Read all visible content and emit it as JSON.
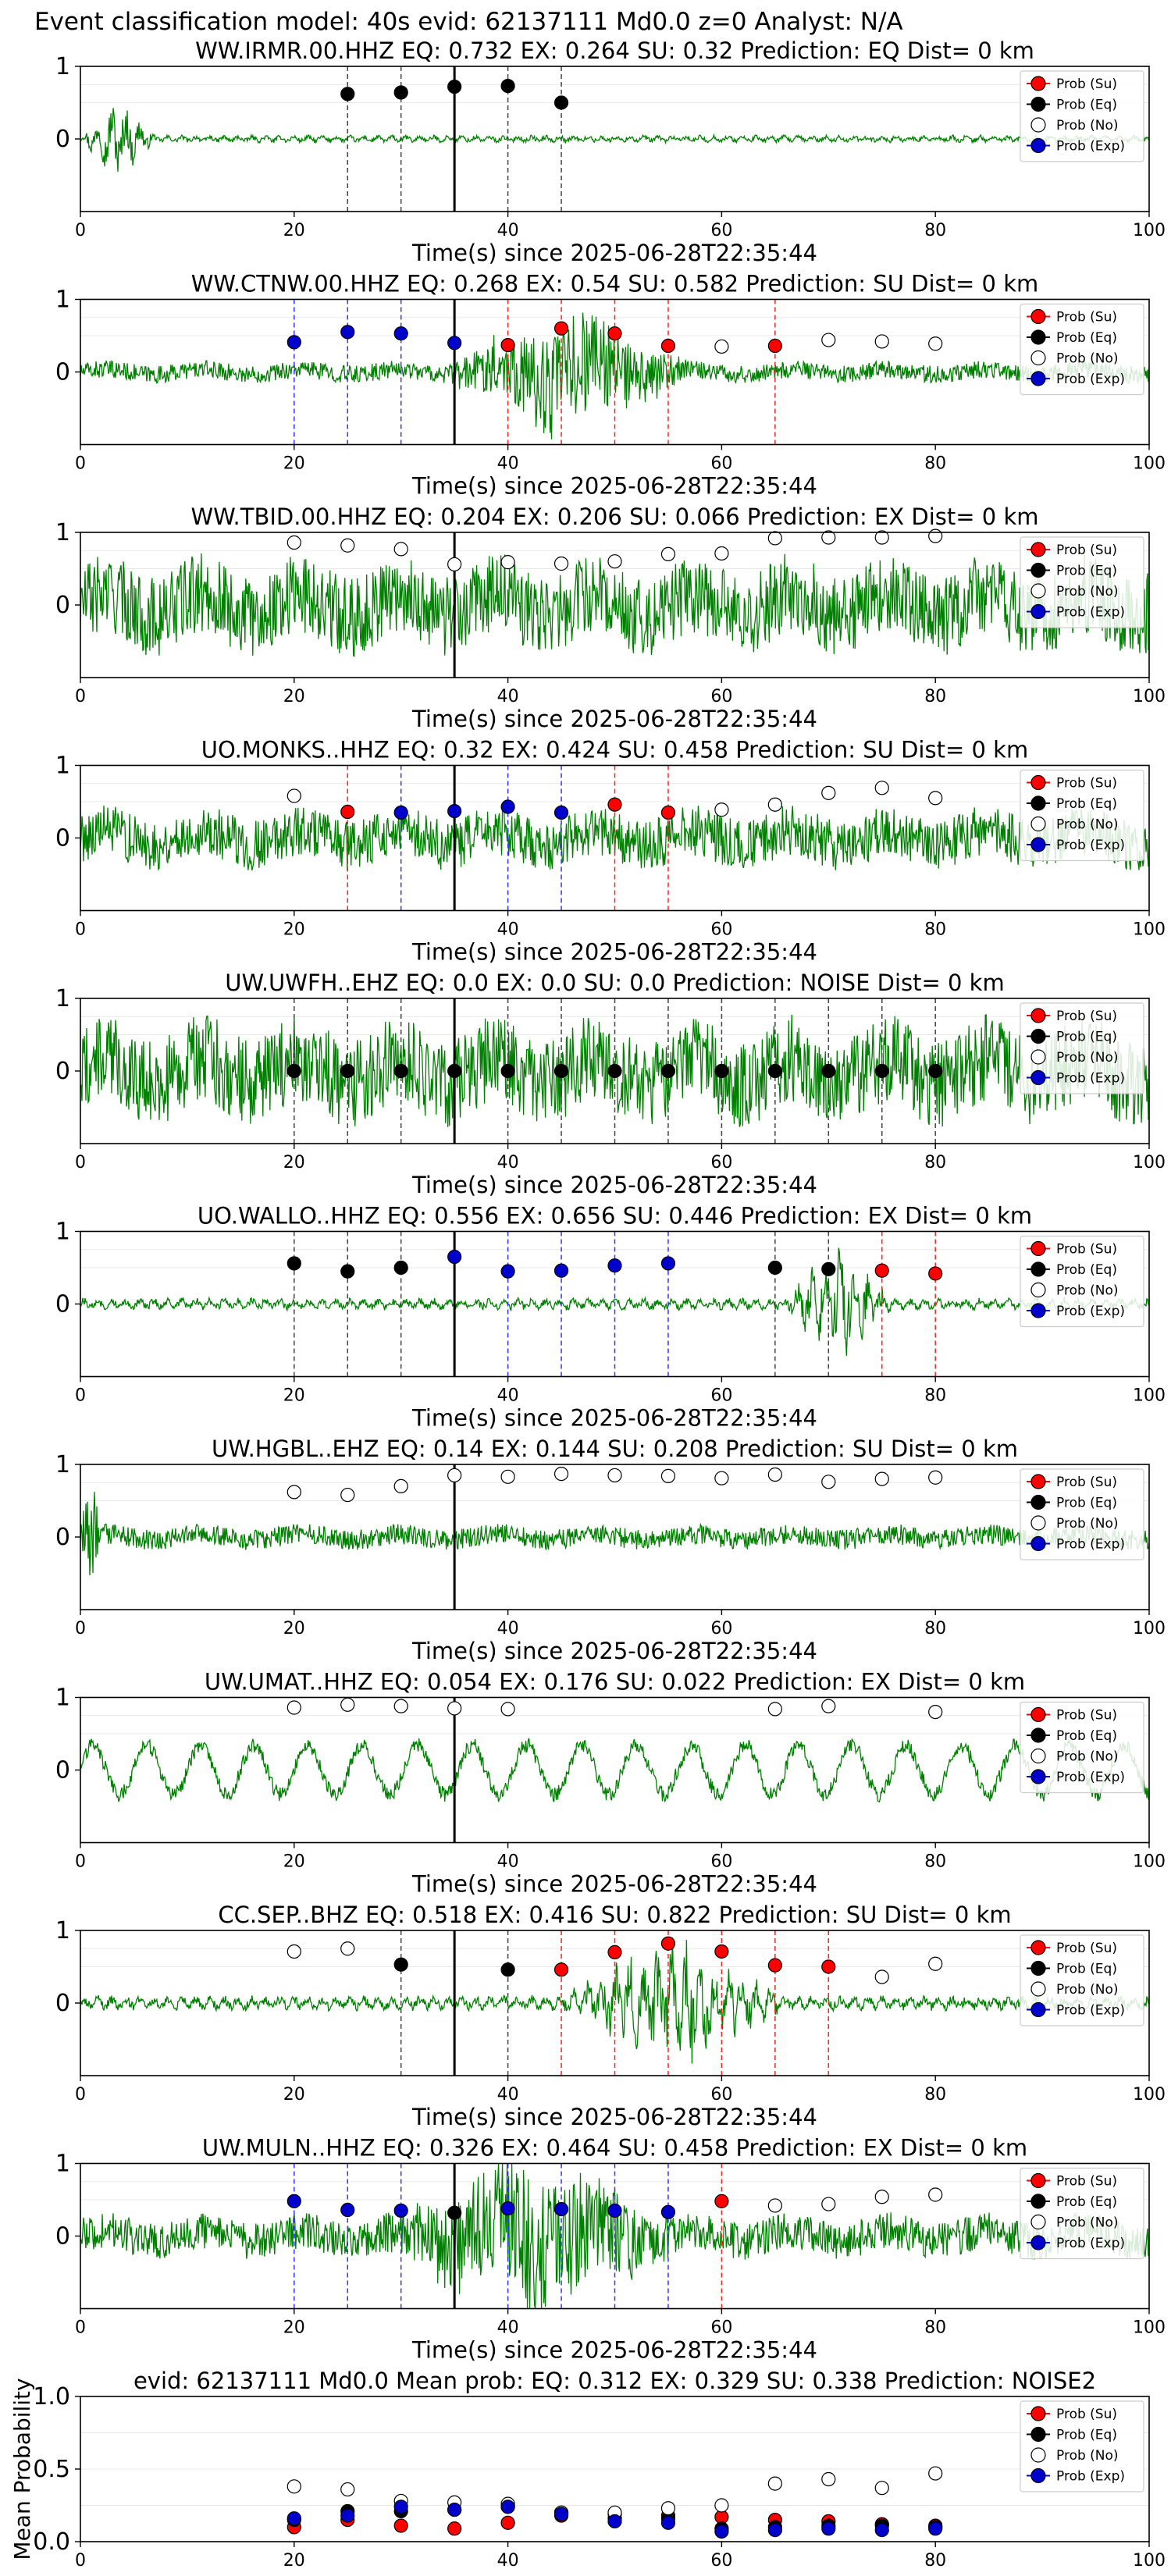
{
  "figure_title": "Event classification model: 40s evid: 62137111 Md0.0 z=0 Analyst: N/A",
  "colors": {
    "waveform": "#008000",
    "prob_su": "#ff0000",
    "prob_eq": "#000000",
    "prob_no": "#ffffff",
    "prob_exp": "#0000cc"
  },
  "legend": [
    "Prob (Su)",
    "Prob (Eq)",
    "Prob (No)",
    "Prob (Exp)"
  ],
  "chart_data": [
    {
      "type": "scatter",
      "title": "WW.IRMR.00.HHZ   EQ: 0.732   EX: 0.264   SU: 0.32   Prediction: EQ    Dist= 0 km",
      "xlabel": "Time(s) since 2025-06-28T22:35:44",
      "ylabel": "",
      "xlim": [
        0,
        100
      ],
      "ylim": [
        -1,
        1
      ],
      "xticks": [
        "0",
        "20",
        "40",
        "60",
        "80",
        "100"
      ],
      "yticks": [
        "1",
        "0"
      ],
      "waveform": {
        "amplitude": 0.05,
        "burst_start": 0,
        "burst_end": 7,
        "burst_amplitude": 0.5,
        "noise": "low"
      },
      "event_line_x": 35,
      "points": [
        {
          "x": 25,
          "y": 0.62,
          "class": "eq"
        },
        {
          "x": 30,
          "y": 0.64,
          "class": "eq"
        },
        {
          "x": 35,
          "y": 0.72,
          "class": "eq"
        },
        {
          "x": 40,
          "y": 0.73,
          "class": "eq"
        },
        {
          "x": 45,
          "y": 0.5,
          "class": "eq"
        }
      ]
    },
    {
      "type": "scatter",
      "title": "WW.CTNW.00.HHZ   EQ: 0.268   EX: 0.54   SU: 0.582   Prediction: SU    Dist= 0 km",
      "xlabel": "Time(s) since 2025-06-28T22:35:44",
      "ylabel": "",
      "xlim": [
        0,
        100
      ],
      "ylim": [
        -1,
        1
      ],
      "xticks": [
        "0",
        "20",
        "40",
        "60",
        "80",
        "100"
      ],
      "yticks": [
        "1",
        "0"
      ],
      "waveform": {
        "amplitude": 0.12,
        "burst_start": 34,
        "burst_end": 57,
        "burst_amplitude": 0.7,
        "noise": "medium"
      },
      "event_line_x": 35,
      "points": [
        {
          "x": 20,
          "y": 0.41,
          "class": "exp"
        },
        {
          "x": 25,
          "y": 0.55,
          "class": "exp"
        },
        {
          "x": 30,
          "y": 0.53,
          "class": "exp"
        },
        {
          "x": 35,
          "y": 0.4,
          "class": "exp"
        },
        {
          "x": 40,
          "y": 0.37,
          "class": "su"
        },
        {
          "x": 45,
          "y": 0.6,
          "class": "su"
        },
        {
          "x": 50,
          "y": 0.53,
          "class": "su"
        },
        {
          "x": 55,
          "y": 0.36,
          "class": "su"
        },
        {
          "x": 60,
          "y": 0.35,
          "class": "no"
        },
        {
          "x": 65,
          "y": 0.36,
          "class": "su"
        },
        {
          "x": 70,
          "y": 0.44,
          "class": "no"
        },
        {
          "x": 75,
          "y": 0.42,
          "class": "no"
        },
        {
          "x": 80,
          "y": 0.39,
          "class": "no"
        }
      ]
    },
    {
      "type": "scatter",
      "title": "WW.TBID.00.HHZ   EQ: 0.204   EX: 0.206   SU: 0.066   Prediction: EX    Dist= 0 km",
      "xlabel": "Time(s) since 2025-06-28T22:35:44",
      "ylabel": "",
      "xlim": [
        0,
        100
      ],
      "ylim": [
        -1,
        1
      ],
      "xticks": [
        "0",
        "20",
        "40",
        "60",
        "80",
        "100"
      ],
      "yticks": [
        "1",
        "0"
      ],
      "waveform": {
        "amplitude": 0.55,
        "burst_start": 0,
        "burst_end": 0,
        "burst_amplitude": 0,
        "noise": "high"
      },
      "event_line_x": 35,
      "points": [
        {
          "x": 20,
          "y": 0.86,
          "class": "no"
        },
        {
          "x": 25,
          "y": 0.82,
          "class": "no"
        },
        {
          "x": 30,
          "y": 0.77,
          "class": "no"
        },
        {
          "x": 35,
          "y": 0.56,
          "class": "no"
        },
        {
          "x": 40,
          "y": 0.59,
          "class": "no"
        },
        {
          "x": 45,
          "y": 0.57,
          "class": "no"
        },
        {
          "x": 50,
          "y": 0.6,
          "class": "no"
        },
        {
          "x": 55,
          "y": 0.7,
          "class": "no"
        },
        {
          "x": 60,
          "y": 0.71,
          "class": "no"
        },
        {
          "x": 65,
          "y": 0.92,
          "class": "no"
        },
        {
          "x": 70,
          "y": 0.93,
          "class": "no"
        },
        {
          "x": 75,
          "y": 0.93,
          "class": "no"
        },
        {
          "x": 80,
          "y": 0.95,
          "class": "no"
        }
      ]
    },
    {
      "type": "scatter",
      "title": "UO.MONKS..HHZ   EQ: 0.32   EX: 0.424   SU: 0.458   Prediction: SU    Dist= 0 km",
      "xlabel": "Time(s) since 2025-06-28T22:35:44",
      "ylabel": "",
      "xlim": [
        0,
        100
      ],
      "ylim": [
        -1,
        1
      ],
      "xticks": [
        "0",
        "20",
        "40",
        "60",
        "80",
        "100"
      ],
      "yticks": [
        "1",
        "0"
      ],
      "waveform": {
        "amplitude": 0.35,
        "burst_start": 0,
        "burst_end": 0,
        "burst_amplitude": 0,
        "noise": "high"
      },
      "event_line_x": 35,
      "points": [
        {
          "x": 20,
          "y": 0.58,
          "class": "no"
        },
        {
          "x": 25,
          "y": 0.36,
          "class": "su"
        },
        {
          "x": 30,
          "y": 0.35,
          "class": "exp"
        },
        {
          "x": 35,
          "y": 0.37,
          "class": "exp"
        },
        {
          "x": 40,
          "y": 0.43,
          "class": "exp"
        },
        {
          "x": 45,
          "y": 0.35,
          "class": "exp"
        },
        {
          "x": 50,
          "y": 0.46,
          "class": "su"
        },
        {
          "x": 55,
          "y": 0.35,
          "class": "su"
        },
        {
          "x": 60,
          "y": 0.39,
          "class": "no"
        },
        {
          "x": 65,
          "y": 0.46,
          "class": "no"
        },
        {
          "x": 70,
          "y": 0.62,
          "class": "no"
        },
        {
          "x": 75,
          "y": 0.69,
          "class": "no"
        },
        {
          "x": 80,
          "y": 0.55,
          "class": "no"
        }
      ]
    },
    {
      "type": "scatter",
      "title": "UW.UWFH..EHZ   EQ: 0.0  EX: 0.0  SU: 0.0   Prediction: NOISE    Dist= 0 km",
      "xlabel": "Time(s) since 2025-06-28T22:35:44",
      "ylabel": "",
      "xlim": [
        0,
        100
      ],
      "ylim": [
        -1,
        1
      ],
      "xticks": [
        "0",
        "20",
        "40",
        "60",
        "80",
        "100"
      ],
      "yticks": [
        "1",
        "0"
      ],
      "waveform": {
        "amplitude": 0.6,
        "burst_start": 0,
        "burst_end": 0,
        "burst_amplitude": 0,
        "noise": "high"
      },
      "event_line_x": 35,
      "points": [
        {
          "x": 20,
          "y": 0.0,
          "class": "eq"
        },
        {
          "x": 25,
          "y": 0.0,
          "class": "eq"
        },
        {
          "x": 30,
          "y": 0.0,
          "class": "eq"
        },
        {
          "x": 35,
          "y": 0.0,
          "class": "eq"
        },
        {
          "x": 40,
          "y": 0.0,
          "class": "eq"
        },
        {
          "x": 45,
          "y": 0.0,
          "class": "eq"
        },
        {
          "x": 50,
          "y": 0.0,
          "class": "eq"
        },
        {
          "x": 55,
          "y": 0.0,
          "class": "eq"
        },
        {
          "x": 60,
          "y": 0.0,
          "class": "eq"
        },
        {
          "x": 65,
          "y": 0.0,
          "class": "eq"
        },
        {
          "x": 70,
          "y": 0.0,
          "class": "eq"
        },
        {
          "x": 75,
          "y": 0.0,
          "class": "eq"
        },
        {
          "x": 80,
          "y": 0.0,
          "class": "eq"
        }
      ]
    },
    {
      "type": "scatter",
      "title": "UO.WALLO..HHZ   EQ: 0.556  EX: 0.656  SU: 0.446   Prediction: EX    Dist= 0 km",
      "xlabel": "Time(s) since 2025-06-28T22:35:44",
      "ylabel": "",
      "xlim": [
        0,
        100
      ],
      "ylim": [
        -1,
        1
      ],
      "xticks": [
        "0",
        "20",
        "40",
        "60",
        "80",
        "100"
      ],
      "yticks": [
        "1",
        "0"
      ],
      "waveform": {
        "amplitude": 0.08,
        "burst_start": 66,
        "burst_end": 76,
        "burst_amplitude": 0.8,
        "noise": "low"
      },
      "event_line_x": 35,
      "points": [
        {
          "x": 20,
          "y": 0.56,
          "class": "eq"
        },
        {
          "x": 25,
          "y": 0.45,
          "class": "eq"
        },
        {
          "x": 30,
          "y": 0.5,
          "class": "eq"
        },
        {
          "x": 35,
          "y": 0.65,
          "class": "exp"
        },
        {
          "x": 40,
          "y": 0.45,
          "class": "exp"
        },
        {
          "x": 45,
          "y": 0.46,
          "class": "exp"
        },
        {
          "x": 50,
          "y": 0.53,
          "class": "exp"
        },
        {
          "x": 55,
          "y": 0.56,
          "class": "exp"
        },
        {
          "x": 65,
          "y": 0.5,
          "class": "eq"
        },
        {
          "x": 70,
          "y": 0.48,
          "class": "eq"
        },
        {
          "x": 75,
          "y": 0.46,
          "class": "su"
        },
        {
          "x": 80,
          "y": 0.42,
          "class": "su"
        }
      ]
    },
    {
      "type": "scatter",
      "title": "UW.HGBL..EHZ   EQ: 0.14  EX: 0.144  SU: 0.208   Prediction: SU    Dist= 0 km",
      "xlabel": "Time(s) since 2025-06-28T22:35:44",
      "ylabel": "",
      "xlim": [
        0,
        100
      ],
      "ylim": [
        -1,
        1
      ],
      "xticks": [
        "0",
        "20",
        "40",
        "60",
        "80",
        "100"
      ],
      "yticks": [
        "1",
        "0"
      ],
      "waveform": {
        "amplitude": 0.14,
        "burst_start": 0,
        "burst_end": 2,
        "burst_amplitude": 0.7,
        "noise": "medium"
      },
      "event_line_x": 35,
      "points": [
        {
          "x": 20,
          "y": 0.62,
          "class": "no"
        },
        {
          "x": 25,
          "y": 0.58,
          "class": "no"
        },
        {
          "x": 30,
          "y": 0.7,
          "class": "no"
        },
        {
          "x": 35,
          "y": 0.85,
          "class": "no"
        },
        {
          "x": 40,
          "y": 0.83,
          "class": "no"
        },
        {
          "x": 45,
          "y": 0.87,
          "class": "no"
        },
        {
          "x": 50,
          "y": 0.85,
          "class": "no"
        },
        {
          "x": 55,
          "y": 0.84,
          "class": "no"
        },
        {
          "x": 60,
          "y": 0.81,
          "class": "no"
        },
        {
          "x": 65,
          "y": 0.86,
          "class": "no"
        },
        {
          "x": 70,
          "y": 0.76,
          "class": "no"
        },
        {
          "x": 75,
          "y": 0.8,
          "class": "no"
        },
        {
          "x": 80,
          "y": 0.82,
          "class": "no"
        }
      ]
    },
    {
      "type": "scatter",
      "title": "UW.UMAT..HHZ   EQ: 0.054  EX: 0.176  SU: 0.022   Prediction: EX    Dist= 0 km",
      "xlabel": "Time(s) since 2025-06-28T22:35:44",
      "ylabel": "",
      "xlim": [
        0,
        100
      ],
      "ylim": [
        -1,
        1
      ],
      "xticks": [
        "0",
        "20",
        "40",
        "60",
        "80",
        "100"
      ],
      "yticks": [
        "1",
        "0"
      ],
      "waveform": {
        "amplitude": 0.4,
        "burst_start": 0,
        "burst_end": 0,
        "burst_amplitude": 0,
        "noise": "wavy"
      },
      "event_line_x": 35,
      "points": [
        {
          "x": 20,
          "y": 0.86,
          "class": "no"
        },
        {
          "x": 25,
          "y": 0.9,
          "class": "no"
        },
        {
          "x": 30,
          "y": 0.88,
          "class": "no"
        },
        {
          "x": 35,
          "y": 0.85,
          "class": "no"
        },
        {
          "x": 40,
          "y": 0.84,
          "class": "no"
        },
        {
          "x": 65,
          "y": 0.84,
          "class": "no"
        },
        {
          "x": 70,
          "y": 0.88,
          "class": "no"
        },
        {
          "x": 80,
          "y": 0.8,
          "class": "no"
        }
      ]
    },
    {
      "type": "scatter",
      "title": "CC.SEP..BHZ   EQ: 0.518  EX: 0.416  SU: 0.822   Prediction: SU    Dist= 0 km",
      "xlabel": "Time(s) since 2025-06-28T22:35:44",
      "ylabel": "",
      "xlim": [
        0,
        100
      ],
      "ylim": [
        -1,
        1
      ],
      "xticks": [
        "0",
        "20",
        "40",
        "60",
        "80",
        "100"
      ],
      "yticks": [
        "1",
        "0"
      ],
      "waveform": {
        "amplitude": 0.1,
        "burst_start": 45,
        "burst_end": 66,
        "burst_amplitude": 0.85,
        "noise": "low"
      },
      "event_line_x": 35,
      "points": [
        {
          "x": 20,
          "y": 0.71,
          "class": "no"
        },
        {
          "x": 25,
          "y": 0.75,
          "class": "no"
        },
        {
          "x": 30,
          "y": 0.53,
          "class": "eq"
        },
        {
          "x": 40,
          "y": 0.46,
          "class": "eq"
        },
        {
          "x": 45,
          "y": 0.46,
          "class": "su"
        },
        {
          "x": 50,
          "y": 0.7,
          "class": "su"
        },
        {
          "x": 55,
          "y": 0.82,
          "class": "su"
        },
        {
          "x": 60,
          "y": 0.71,
          "class": "su"
        },
        {
          "x": 65,
          "y": 0.52,
          "class": "su"
        },
        {
          "x": 70,
          "y": 0.5,
          "class": "su"
        },
        {
          "x": 75,
          "y": 0.36,
          "class": "no"
        },
        {
          "x": 80,
          "y": 0.54,
          "class": "no"
        }
      ]
    },
    {
      "type": "scatter",
      "title": "UW.MULN..HHZ   EQ: 0.326  EX: 0.464  SU: 0.458   Prediction: EX    Dist= 0 km",
      "xlabel": "Time(s) since 2025-06-28T22:35:44",
      "ylabel": "",
      "xlim": [
        0,
        100
      ],
      "ylim": [
        -1,
        1
      ],
      "xticks": [
        "0",
        "20",
        "40",
        "60",
        "80",
        "100"
      ],
      "yticks": [
        "1",
        "0"
      ],
      "waveform": {
        "amplitude": 0.25,
        "burst_start": 28,
        "burst_end": 56,
        "burst_amplitude": 0.8,
        "noise": "medium"
      },
      "event_line_x": 35,
      "points": [
        {
          "x": 20,
          "y": 0.48,
          "class": "exp"
        },
        {
          "x": 25,
          "y": 0.36,
          "class": "exp"
        },
        {
          "x": 30,
          "y": 0.35,
          "class": "exp"
        },
        {
          "x": 35,
          "y": 0.32,
          "class": "eq"
        },
        {
          "x": 40,
          "y": 0.38,
          "class": "exp"
        },
        {
          "x": 45,
          "y": 0.37,
          "class": "exp"
        },
        {
          "x": 50,
          "y": 0.35,
          "class": "exp"
        },
        {
          "x": 55,
          "y": 0.33,
          "class": "exp"
        },
        {
          "x": 60,
          "y": 0.48,
          "class": "su"
        },
        {
          "x": 65,
          "y": 0.42,
          "class": "no"
        },
        {
          "x": 70,
          "y": 0.44,
          "class": "no"
        },
        {
          "x": 75,
          "y": 0.54,
          "class": "no"
        },
        {
          "x": 80,
          "y": 0.57,
          "class": "no"
        }
      ]
    },
    {
      "type": "scatter",
      "title": "evid: 62137111  Md0.0   Mean prob:   EQ: 0.312  EX: 0.329  SU: 0.338   Prediction: NOISE2",
      "xlabel": "",
      "ylabel": "Mean Probability",
      "xlim": [
        0,
        100
      ],
      "ylim": [
        0,
        1
      ],
      "xticks": [
        "0",
        "20",
        "40",
        "60",
        "80",
        "100"
      ],
      "yticks": [
        "1.0",
        "0.5",
        "0.0"
      ],
      "series": [
        {
          "class": "su",
          "x": [
            20,
            25,
            30,
            35,
            40,
            45,
            50,
            55,
            60,
            65,
            70,
            75,
            80
          ],
          "y": [
            0.1,
            0.15,
            0.11,
            0.09,
            0.13,
            0.18,
            0.19,
            0.18,
            0.17,
            0.15,
            0.14,
            0.12,
            0.11
          ]
        },
        {
          "class": "eq",
          "x": [
            20,
            25,
            30,
            35,
            40,
            45,
            50,
            55,
            60,
            65,
            70,
            75,
            80
          ],
          "y": [
            0.15,
            0.21,
            0.21,
            0.22,
            0.24,
            0.2,
            0.16,
            0.16,
            0.09,
            0.1,
            0.11,
            0.11,
            0.1
          ]
        },
        {
          "class": "no",
          "x": [
            20,
            25,
            30,
            35,
            40,
            45,
            50,
            55,
            60,
            65,
            70,
            75,
            80
          ],
          "y": [
            0.38,
            0.36,
            0.28,
            0.27,
            0.26,
            0.2,
            0.2,
            0.23,
            0.25,
            0.4,
            0.43,
            0.37,
            0.47
          ]
        },
        {
          "class": "exp",
          "x": [
            20,
            25,
            30,
            35,
            40,
            45,
            50,
            55,
            60,
            65,
            70,
            75,
            80
          ],
          "y": [
            0.16,
            0.18,
            0.24,
            0.22,
            0.24,
            0.19,
            0.14,
            0.13,
            0.07,
            0.08,
            0.09,
            0.08,
            0.09
          ]
        }
      ]
    }
  ]
}
